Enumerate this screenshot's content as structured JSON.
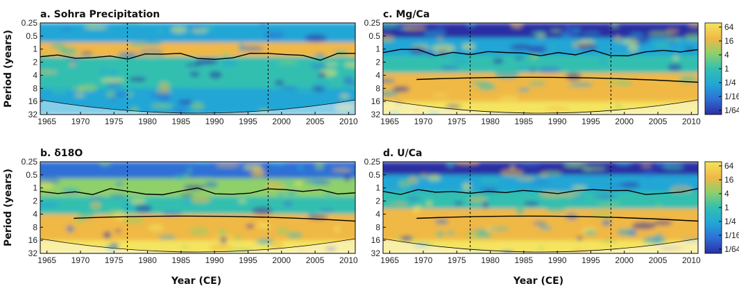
{
  "colors": {
    "scale": [
      "#2b2fa3",
      "#2e6fd6",
      "#22a6d6",
      "#33bfb0",
      "#8fd06a",
      "#f0b845",
      "#f4e45e"
    ],
    "coi_tint": "#ffffff",
    "contour": "#000000"
  },
  "x_axis_label": "Year (CE)",
  "y_axis_label": "Period (years)",
  "x_ticks": [
    "1965",
    "1970",
    "1975",
    "1980",
    "1985",
    "1990",
    "1995",
    "2000",
    "2005",
    "2010"
  ],
  "y_ticks": [
    "0.25",
    "0.5",
    "1",
    "2",
    "4",
    "8",
    "16",
    "32"
  ],
  "colorbar_ticks": [
    "64",
    "16",
    "4",
    "1",
    "1/4",
    "1/16",
    "1/64"
  ],
  "chart_data": [
    {
      "type": "heatmap",
      "title": "a. Sohra Precipitation",
      "xlabel": "",
      "ylabel": "Period (years)",
      "xlim": [
        1964,
        2011
      ],
      "ylim": [
        0.25,
        32
      ],
      "y_scale": "log2",
      "dashed_lines_x": [
        1977,
        1998
      ],
      "dominant_band_period": 1,
      "low_power_periods": [
        2,
        32
      ],
      "colorbar": false
    },
    {
      "type": "heatmap",
      "title": "b. δ18O",
      "xlabel": "Year (CE)",
      "ylabel": "Period (years)",
      "xlim": [
        1964,
        2011
      ],
      "ylim": [
        0.25,
        32
      ],
      "y_scale": "log2",
      "dashed_lines_x": [
        1977,
        1998
      ],
      "dominant_band_period": 8,
      "colorbar": false
    },
    {
      "type": "heatmap",
      "title": "c. Mg/Ca",
      "xlabel": "",
      "ylabel": "",
      "xlim": [
        1964,
        2011
      ],
      "ylim": [
        0.25,
        32
      ],
      "y_scale": "log2",
      "dashed_lines_x": [
        1977,
        1998
      ],
      "dominant_band_period": 8,
      "colorbar": true,
      "colorbar_ticks": [
        "64",
        "16",
        "4",
        "1",
        "1/4",
        "1/16",
        "1/64"
      ]
    },
    {
      "type": "heatmap",
      "title": "d. U/Ca",
      "xlabel": "Year (CE)",
      "ylabel": "",
      "xlim": [
        1964,
        2011
      ],
      "ylim": [
        0.25,
        32
      ],
      "y_scale": "log2",
      "dashed_lines_x": [
        1977,
        1998
      ],
      "dominant_band_period": 8,
      "colorbar": true,
      "colorbar_ticks": [
        "64",
        "16",
        "4",
        "1",
        "1/4",
        "1/16",
        "1/64"
      ]
    }
  ]
}
